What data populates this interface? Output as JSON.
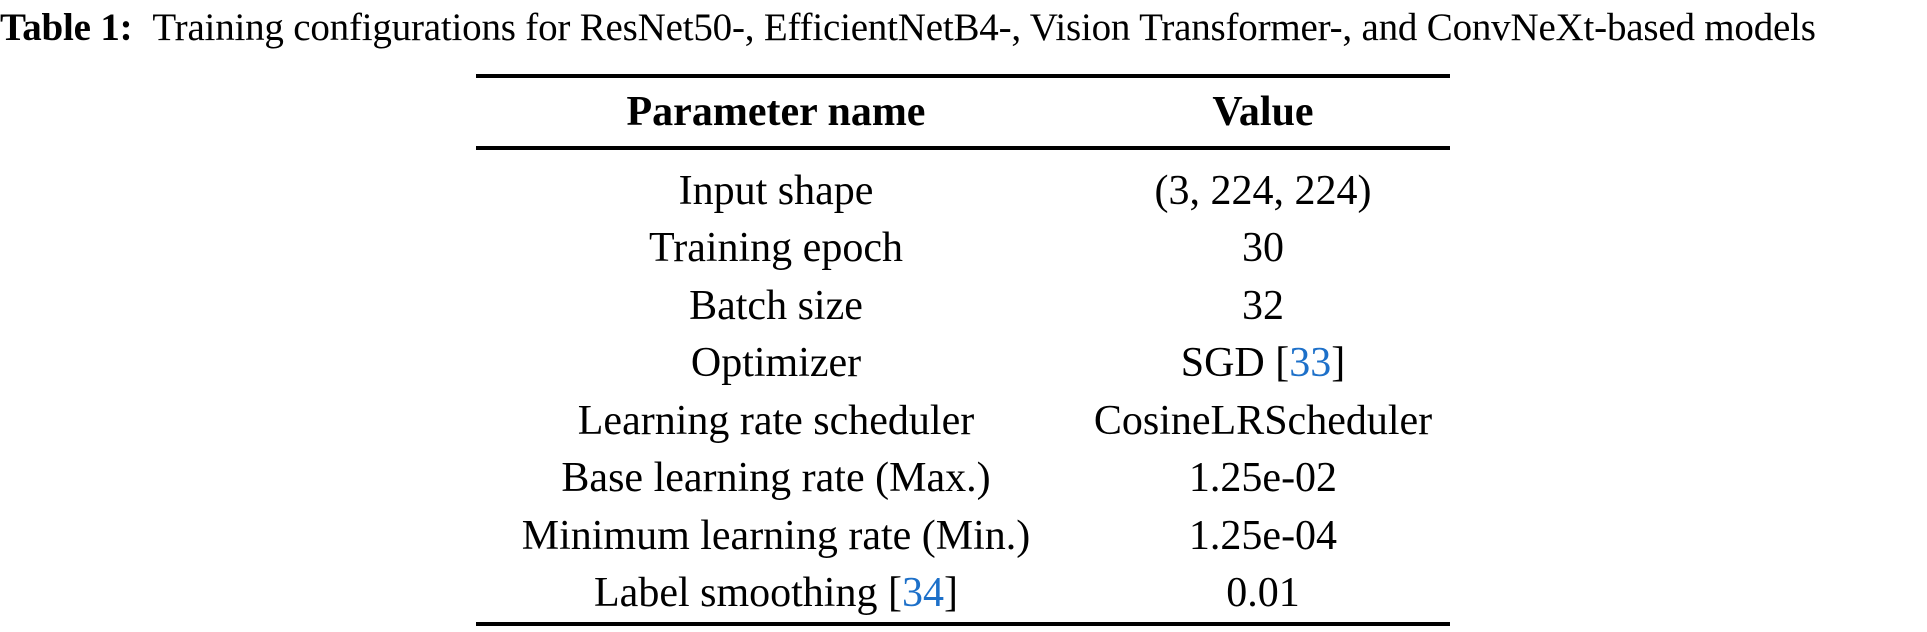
{
  "caption": {
    "label": "Table 1:",
    "text": "Training configurations for ResNet50-, EfficientNetB4-, Vision Transformer-, and ConvNeXt-based models"
  },
  "table": {
    "headers": [
      "Parameter name",
      "Value"
    ],
    "rows": [
      {
        "param": [
          {
            "text": "Input shape"
          }
        ],
        "value": [
          {
            "text": "(3, 224, 224)"
          }
        ]
      },
      {
        "param": [
          {
            "text": "Training epoch"
          }
        ],
        "value": [
          {
            "text": "30"
          }
        ]
      },
      {
        "param": [
          {
            "text": "Batch size"
          }
        ],
        "value": [
          {
            "text": "32"
          }
        ]
      },
      {
        "param": [
          {
            "text": "Optimizer"
          }
        ],
        "value": [
          {
            "text": "SGD ["
          },
          {
            "text": "33",
            "cite": true
          },
          {
            "text": "]"
          }
        ]
      },
      {
        "param": [
          {
            "text": "Learning rate scheduler"
          }
        ],
        "value": [
          {
            "text": "CosineLRScheduler"
          }
        ]
      },
      {
        "param": [
          {
            "text": "Base learning rate (Max.)"
          }
        ],
        "value": [
          {
            "text": "1.25e-02"
          }
        ]
      },
      {
        "param": [
          {
            "text": "Minimum learning rate (Min.)"
          }
        ],
        "value": [
          {
            "text": "1.25e-04"
          }
        ]
      },
      {
        "param": [
          {
            "text": "Label smoothing ["
          },
          {
            "text": "34",
            "cite": true
          },
          {
            "text": "]"
          }
        ],
        "value": [
          {
            "text": "0.01"
          }
        ]
      }
    ]
  },
  "colors": {
    "text_black": "#000000",
    "citation_blue": "#1d70c9"
  }
}
